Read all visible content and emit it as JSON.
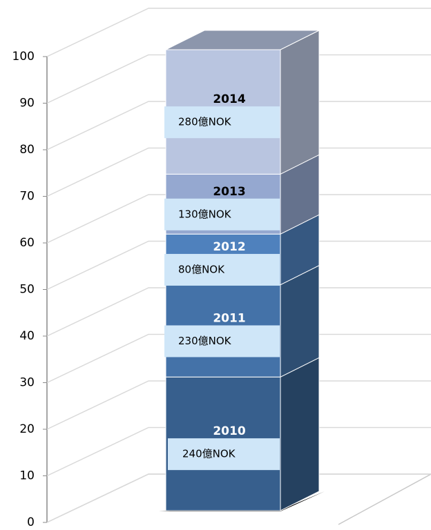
{
  "chart_data": {
    "type": "stacked-bar-3d",
    "ylim": [
      0,
      100
    ],
    "yticks": [
      0,
      10,
      20,
      30,
      40,
      50,
      60,
      70,
      80,
      90,
      100
    ],
    "grid": true,
    "series": [
      {
        "name": "2010",
        "color": "#375f8d",
        "values": [
          29
        ],
        "text_label": "240億NOK"
      },
      {
        "name": "2011",
        "color": "#4472a8",
        "values": [
          20
        ],
        "text_label": "230億NOK"
      },
      {
        "name": "2012",
        "color": "#4f81bd",
        "values": [
          11
        ],
        "text_label": "80億NOK"
      },
      {
        "name": "2013",
        "color": "#95a8d0",
        "values": [
          13
        ],
        "text_label": "130億NOK"
      },
      {
        "name": "2014",
        "color": "#b9c5e0",
        "values": [
          27
        ],
        "text_label": "280億NOK"
      }
    ]
  }
}
